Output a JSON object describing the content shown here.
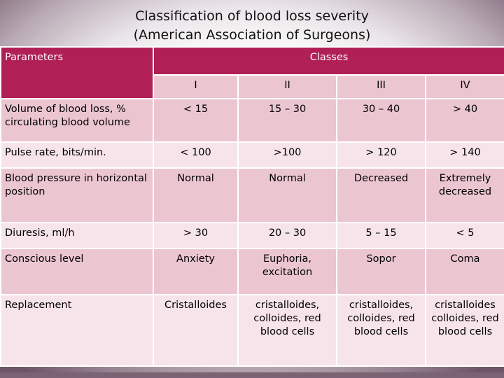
{
  "slide": {
    "title_line1": "Classification of blood loss severity",
    "title_line2": "(American Association of Surgeons)"
  },
  "table": {
    "parameters_header": "Parameters",
    "classes_header": "Classes",
    "classes": [
      "I",
      "II",
      "III",
      "IV"
    ],
    "rows": [
      {
        "label": "Volume of blood loss, % circulating blood volume",
        "values": [
          "< 15",
          "15 – 30",
          "30 – 40",
          "> 40"
        ]
      },
      {
        "label": "Pulse rate, bits/min.",
        "values": [
          "< 100",
          ">100",
          "> 120",
          "> 140"
        ]
      },
      {
        "label": "Blood pressure in horizontal position",
        "values": [
          "Normal",
          "Normal",
          "Decreased",
          "Extremely decreased"
        ]
      },
      {
        "label": "Diuresis, ml/h",
        "values": [
          "> 30",
          "20 – 30",
          "5 – 15",
          "< 5"
        ]
      },
      {
        "label": "Conscious level",
        "values": [
          "Anxiety",
          "Euphoria, excitation",
          "Sopor",
          "Coma"
        ]
      },
      {
        "label": "Replacement",
        "values": [
          "Cristalloides",
          "cristalloides, colloides, red blood cells",
          "cristalloides, colloides, red blood cells",
          "cristalloides colloides, red blood cells"
        ]
      }
    ]
  },
  "colors": {
    "header_bg": "#b01f55",
    "row_dark": "#ebc6d1",
    "row_light": "#f6e4ea"
  }
}
